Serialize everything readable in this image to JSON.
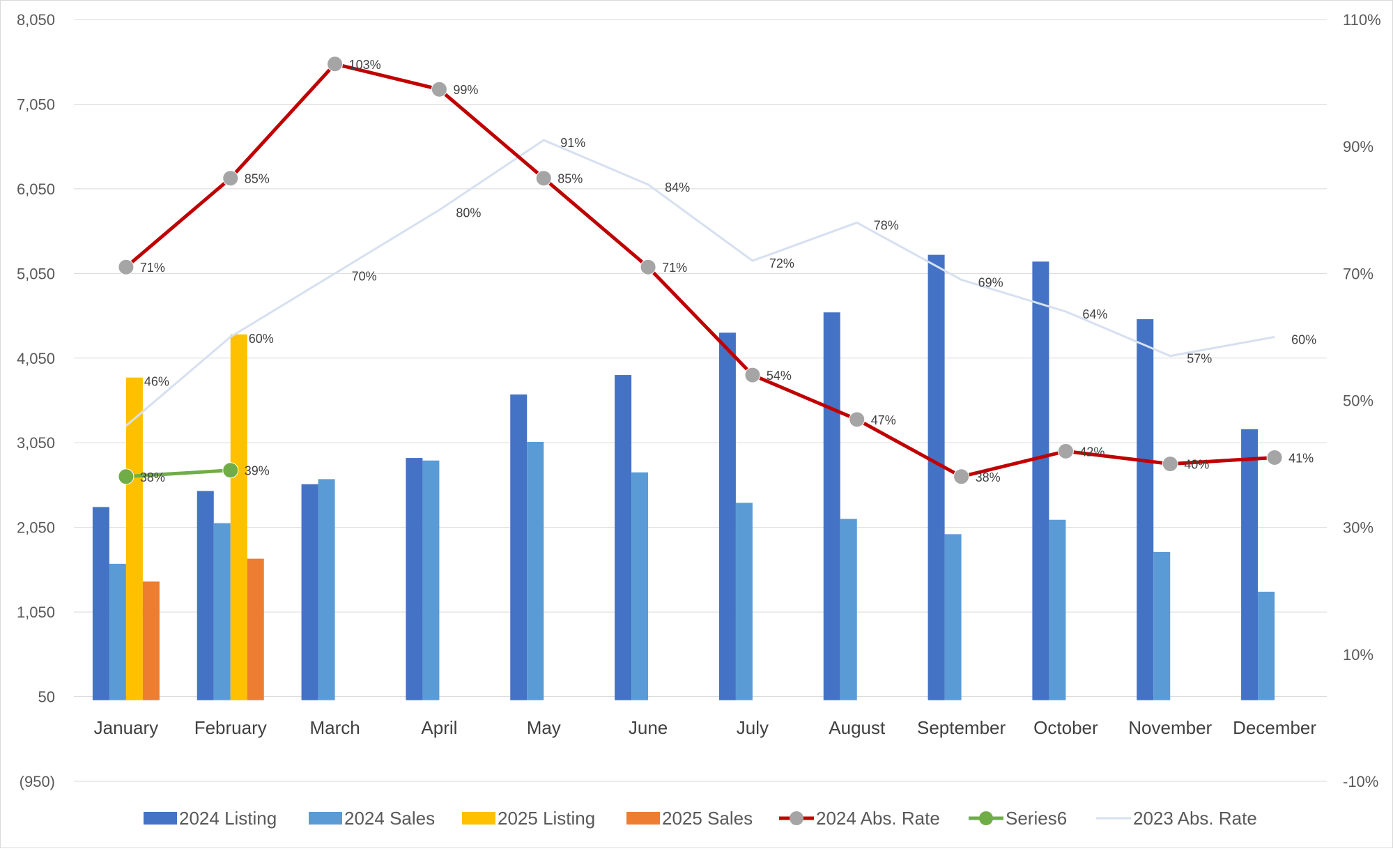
{
  "chart_data": {
    "type": "bar",
    "categories": [
      "January",
      "February",
      "March",
      "April",
      "May",
      "June",
      "July",
      "August",
      "September",
      "October",
      "November",
      "December"
    ],
    "y_left": {
      "min": -950,
      "max": 8050,
      "ticks": [
        "8,050",
        "7,050",
        "6,050",
        "5,050",
        "4,050",
        "3,050",
        "2,050",
        "1,050",
        "50",
        "(950)"
      ],
      "tick_values": [
        8050,
        7050,
        6050,
        5050,
        4050,
        3050,
        2050,
        1050,
        50,
        -950
      ]
    },
    "y_right": {
      "min": -10,
      "max": 110,
      "ticks": [
        "110%",
        "90%",
        "70%",
        "50%",
        "30%",
        "10%",
        "-10%"
      ],
      "tick_values": [
        110,
        90,
        70,
        50,
        30,
        10,
        -10
      ]
    },
    "grid": true,
    "legend_position": "bottom",
    "bar_series": [
      {
        "name": "2024 Listing",
        "color": "#4472c4",
        "values": [
          2290,
          2480,
          2560,
          2870,
          3620,
          3850,
          4350,
          4590,
          5270,
          5190,
          4510,
          3210
        ]
      },
      {
        "name": "2024 Sales",
        "color": "#5b9bd5",
        "values": [
          1620,
          2100,
          2620,
          2840,
          3060,
          2700,
          2340,
          2150,
          1970,
          2140,
          1760,
          1290
        ]
      },
      {
        "name": "2025 Listing",
        "color": "#ffc000",
        "values": [
          3820,
          4330,
          null,
          null,
          null,
          null,
          null,
          null,
          null,
          null,
          null,
          null
        ],
        "labels": [
          "46%",
          "60%",
          "",
          "",
          "",
          "",
          "",
          "",
          "",
          "",
          "",
          ""
        ]
      },
      {
        "name": "2025 Sales",
        "color": "#ed7d31",
        "values": [
          1410,
          1680,
          null,
          null,
          null,
          null,
          null,
          null,
          null,
          null,
          null,
          null
        ]
      }
    ],
    "line_series": [
      {
        "name": "2024 Abs. Rate",
        "color": "#c00000",
        "marker_color": "#a5a5a5",
        "values": [
          71,
          85,
          103,
          99,
          85,
          71,
          54,
          47,
          38,
          42,
          40,
          41
        ],
        "labels": [
          "71%",
          "85%",
          "103%",
          "99%",
          "85%",
          "71%",
          "54%",
          "47%",
          "38%",
          "42%",
          "40%",
          "41%"
        ]
      },
      {
        "name": "Series6",
        "color": "#70ad47",
        "marker_color": "#70ad47",
        "values": [
          38,
          39,
          null,
          null,
          null,
          null,
          null,
          null,
          null,
          null,
          null,
          null
        ],
        "labels": [
          "38%",
          "39%",
          "",
          "",
          "",
          "",
          "",
          "",
          "",
          "",
          "",
          ""
        ]
      },
      {
        "name": "2023 Abs. Rate",
        "color": "#d6e0f0",
        "marker_color": null,
        "values": [
          46,
          60,
          70,
          80,
          91,
          84,
          72,
          78,
          69,
          64,
          57,
          60
        ],
        "labels": [
          "",
          "",
          "70%",
          "80%",
          "91%",
          "84%",
          "72%",
          "78%",
          "69%",
          "64%",
          "57%",
          "60%"
        ]
      }
    ]
  }
}
